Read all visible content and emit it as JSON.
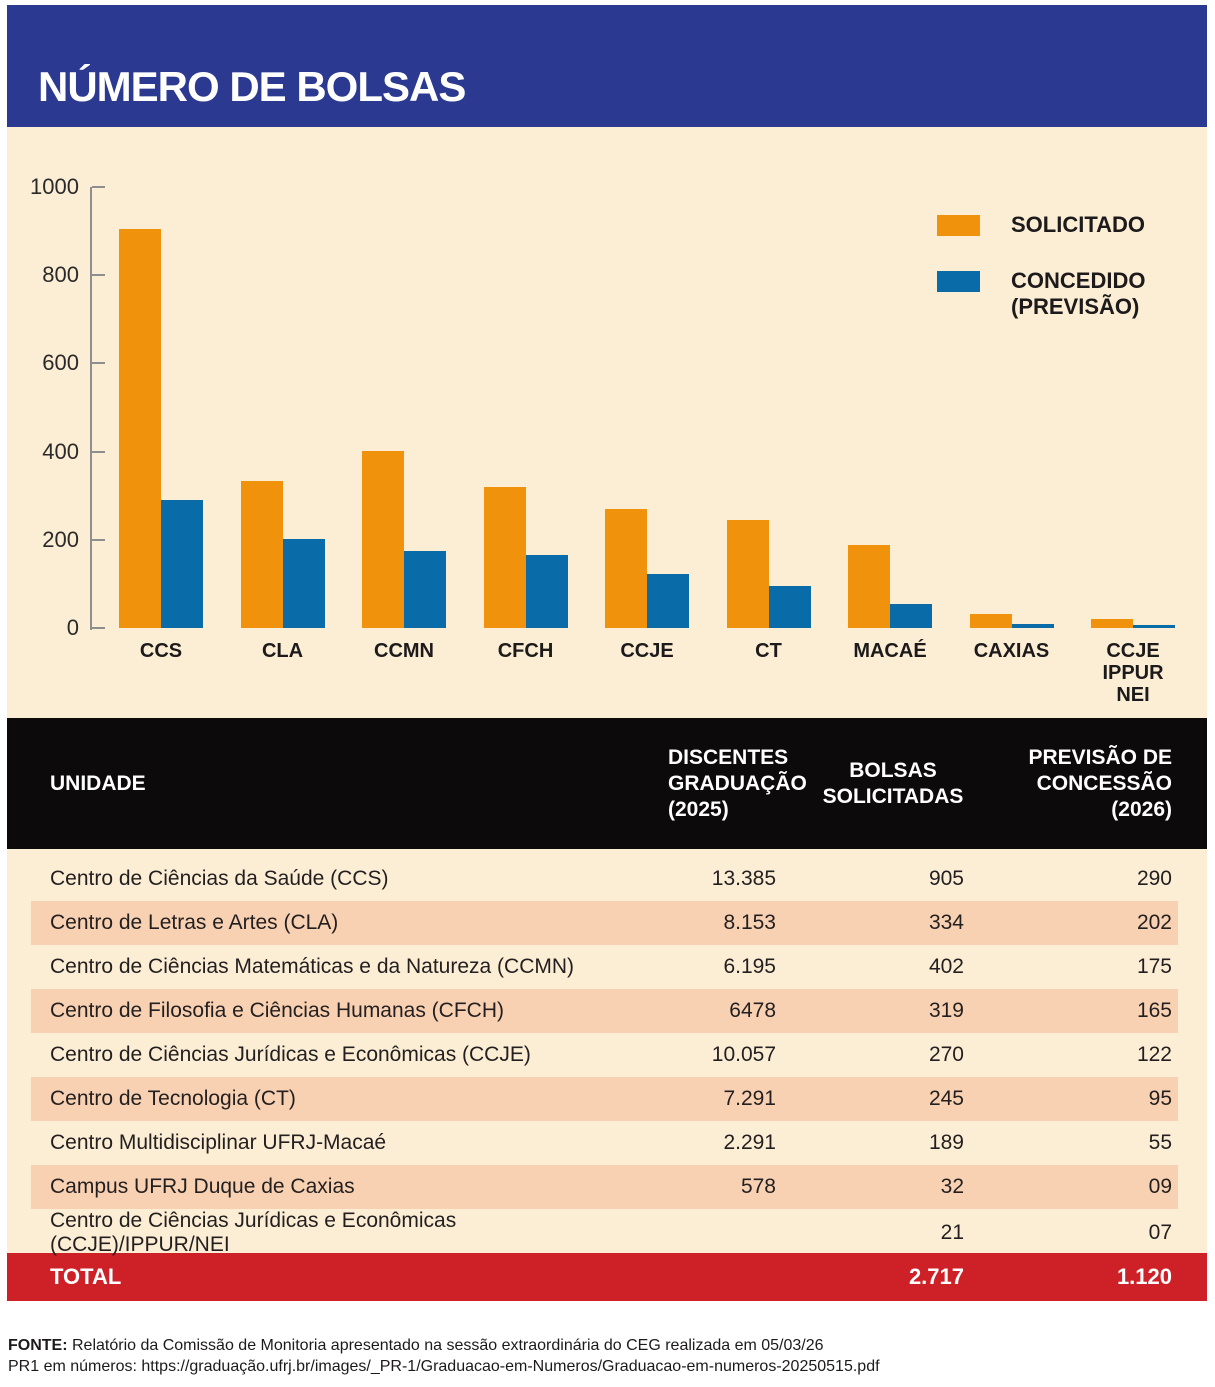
{
  "title": "NÚMERO DE BOLSAS",
  "colors": {
    "header-bg": "#2B3990",
    "chart-bg": "#FCEED5",
    "orange": "#F0920B",
    "blue": "#0A6BA9",
    "table-header-bg": "#0D0A0B",
    "row-alt-bg": "#F8D1B2",
    "total-bg": "#CE2127",
    "text-dark": "#231F20",
    "axis": "#8E8E8E"
  },
  "chart_data": {
    "type": "bar",
    "title": "NÚMERO DE BOLSAS",
    "categories": [
      "CCS",
      "CLA",
      "CCMN",
      "CFCH",
      "CCJE",
      "CT",
      "MACAÉ",
      "CAXIAS",
      "CCJE IPPUR NEI"
    ],
    "series": [
      {
        "name": "SOLICITADO",
        "color": "#F0920B",
        "values": [
          905,
          334,
          402,
          319,
          270,
          245,
          189,
          32,
          21
        ]
      },
      {
        "name": "CONCEDIDO (PREVISÃO)",
        "color": "#0A6BA9",
        "values": [
          290,
          202,
          175,
          165,
          122,
          95,
          55,
          9,
          7
        ]
      }
    ],
    "xlabel": "",
    "ylabel": "",
    "ylim": [
      0,
      1000
    ],
    "yticks": [
      0,
      200,
      400,
      600,
      800,
      1000
    ],
    "grid": false,
    "legend_position": "top-right"
  },
  "legend": [
    {
      "label": "SOLICITADO",
      "label_lines": [
        "SOLICITADO"
      ],
      "color": "#F0920B"
    },
    {
      "label": "CONCEDIDO (PREVISÃO)",
      "label_lines": [
        "CONCEDIDO",
        "(PREVISÃO)"
      ],
      "color": "#0A6BA9"
    }
  ],
  "table": {
    "columns": [
      {
        "id": "unidade",
        "lines": [
          "UNIDADE"
        ]
      },
      {
        "id": "discentes",
        "lines": [
          "DISCENTES",
          "GRADUAÇÃO",
          "(2025)"
        ]
      },
      {
        "id": "bolsas",
        "lines": [
          "BOLSAS",
          "SOLICITADAS"
        ]
      },
      {
        "id": "previsao",
        "lines": [
          "PREVISÃO DE",
          "CONCESSÃO",
          "(2026)"
        ]
      }
    ],
    "rows": [
      {
        "unidade": "Centro de Ciências da Saúde (CCS)",
        "discentes": "13.385",
        "bolsas": "905",
        "previsao": "290"
      },
      {
        "unidade": "Centro de Letras e Artes (CLA)",
        "discentes": "8.153",
        "bolsas": "334",
        "previsao": "202"
      },
      {
        "unidade": "Centro de Ciências Matemáticas e da Natureza (CCMN)",
        "discentes": "6.195",
        "bolsas": "402",
        "previsao": "175"
      },
      {
        "unidade": "Centro de Filosofia e Ciências Humanas (CFCH)",
        "discentes": "6478",
        "bolsas": "319",
        "previsao": "165"
      },
      {
        "unidade": "Centro de Ciências Jurídicas e Econômicas (CCJE)",
        "discentes": "10.057",
        "bolsas": "270",
        "previsao": "122"
      },
      {
        "unidade": "Centro de Tecnologia (CT)",
        "discentes": "7.291",
        "bolsas": "245",
        "previsao": "95"
      },
      {
        "unidade": "Centro Multidisciplinar UFRJ-Macaé",
        "discentes": "2.291",
        "bolsas": "189",
        "previsao": "55"
      },
      {
        "unidade": "Campus UFRJ Duque de Caxias",
        "discentes": "578",
        "bolsas": "32",
        "previsao": "09"
      },
      {
        "unidade": "Centro de Ciências Jurídicas e Econômicas (CCJE)/IPPUR/NEI",
        "discentes": "",
        "bolsas": "21",
        "previsao": "07"
      }
    ],
    "total": {
      "label": "TOTAL",
      "discentes": "",
      "bolsas": "2.717",
      "previsao": "1.120"
    }
  },
  "footer": {
    "source_bold": "FONTE:",
    "source_text": "Relatório da Comissão de Monitoria apresentado na sessão extraordinária do CEG realizada em 05/03/26",
    "line2": "PR1 em números: https://graduação.ufrj.br/images/_PR-1/Graduacao-em-Numeros/Graduacao-em-numeros-20250515.pdf"
  }
}
